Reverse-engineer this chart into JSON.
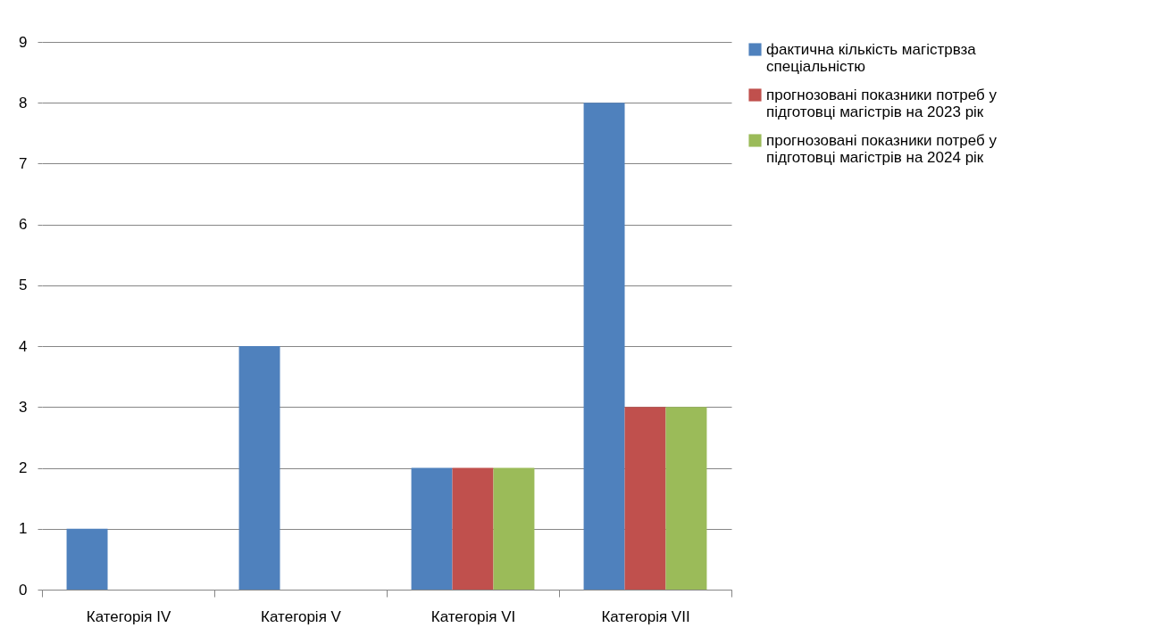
{
  "chart_data": {
    "type": "bar",
    "categories": [
      "Категорія IV",
      "Категорія V",
      "Категорія  VI",
      "Категорія VII"
    ],
    "series": [
      {
        "name": "фактична кількість магістрвза спеціальністю",
        "color": "#4f81bd",
        "values": [
          1,
          4,
          2,
          8
        ]
      },
      {
        "name": "прогнозовані показники потреб у підготовці магістрів на 2023 рік",
        "color": "#c0504d",
        "values": [
          0,
          0,
          2,
          3
        ]
      },
      {
        "name": "прогнозовані показники потреб у підготовці магістрів на 2024 рік",
        "color": "#9bbb59",
        "values": [
          0,
          0,
          2,
          3
        ]
      }
    ],
    "ylim": [
      0,
      9
    ],
    "yticks": [
      0,
      1,
      2,
      3,
      4,
      5,
      6,
      7,
      8,
      9
    ],
    "grid": "y",
    "legend": "right"
  }
}
